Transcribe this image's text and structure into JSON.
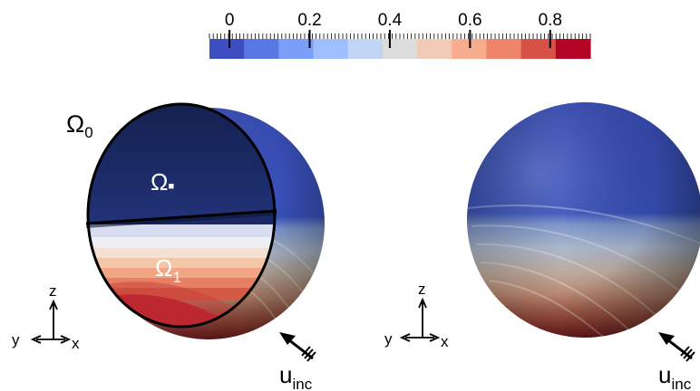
{
  "colorbar": {
    "ticks": [
      "0",
      "0.2",
      "0.4",
      "0.6",
      "0.8"
    ],
    "tick_values": [
      0,
      0.2,
      0.4,
      0.6,
      0.8
    ],
    "range": [
      -0.05,
      0.9
    ],
    "colors": [
      "#3c4ec2",
      "#5a78e4",
      "#7b9ff9",
      "#9ebeff",
      "#c0d4f5",
      "#dddcdc",
      "#f2cbb7",
      "#f7ac8e",
      "#ee8468",
      "#d65244",
      "#b40426"
    ]
  },
  "left_panel": {
    "omega_0_base": "Ω",
    "omega_0_sub": "0",
    "omega_star_base": "Ω",
    "omega_star_mark": "■",
    "omega_1_base": "Ω",
    "omega_1_sub": "1"
  },
  "axes": {
    "z": "z",
    "y": "y",
    "x": "x"
  },
  "incident": {
    "base": "u",
    "sub": "inc"
  }
}
